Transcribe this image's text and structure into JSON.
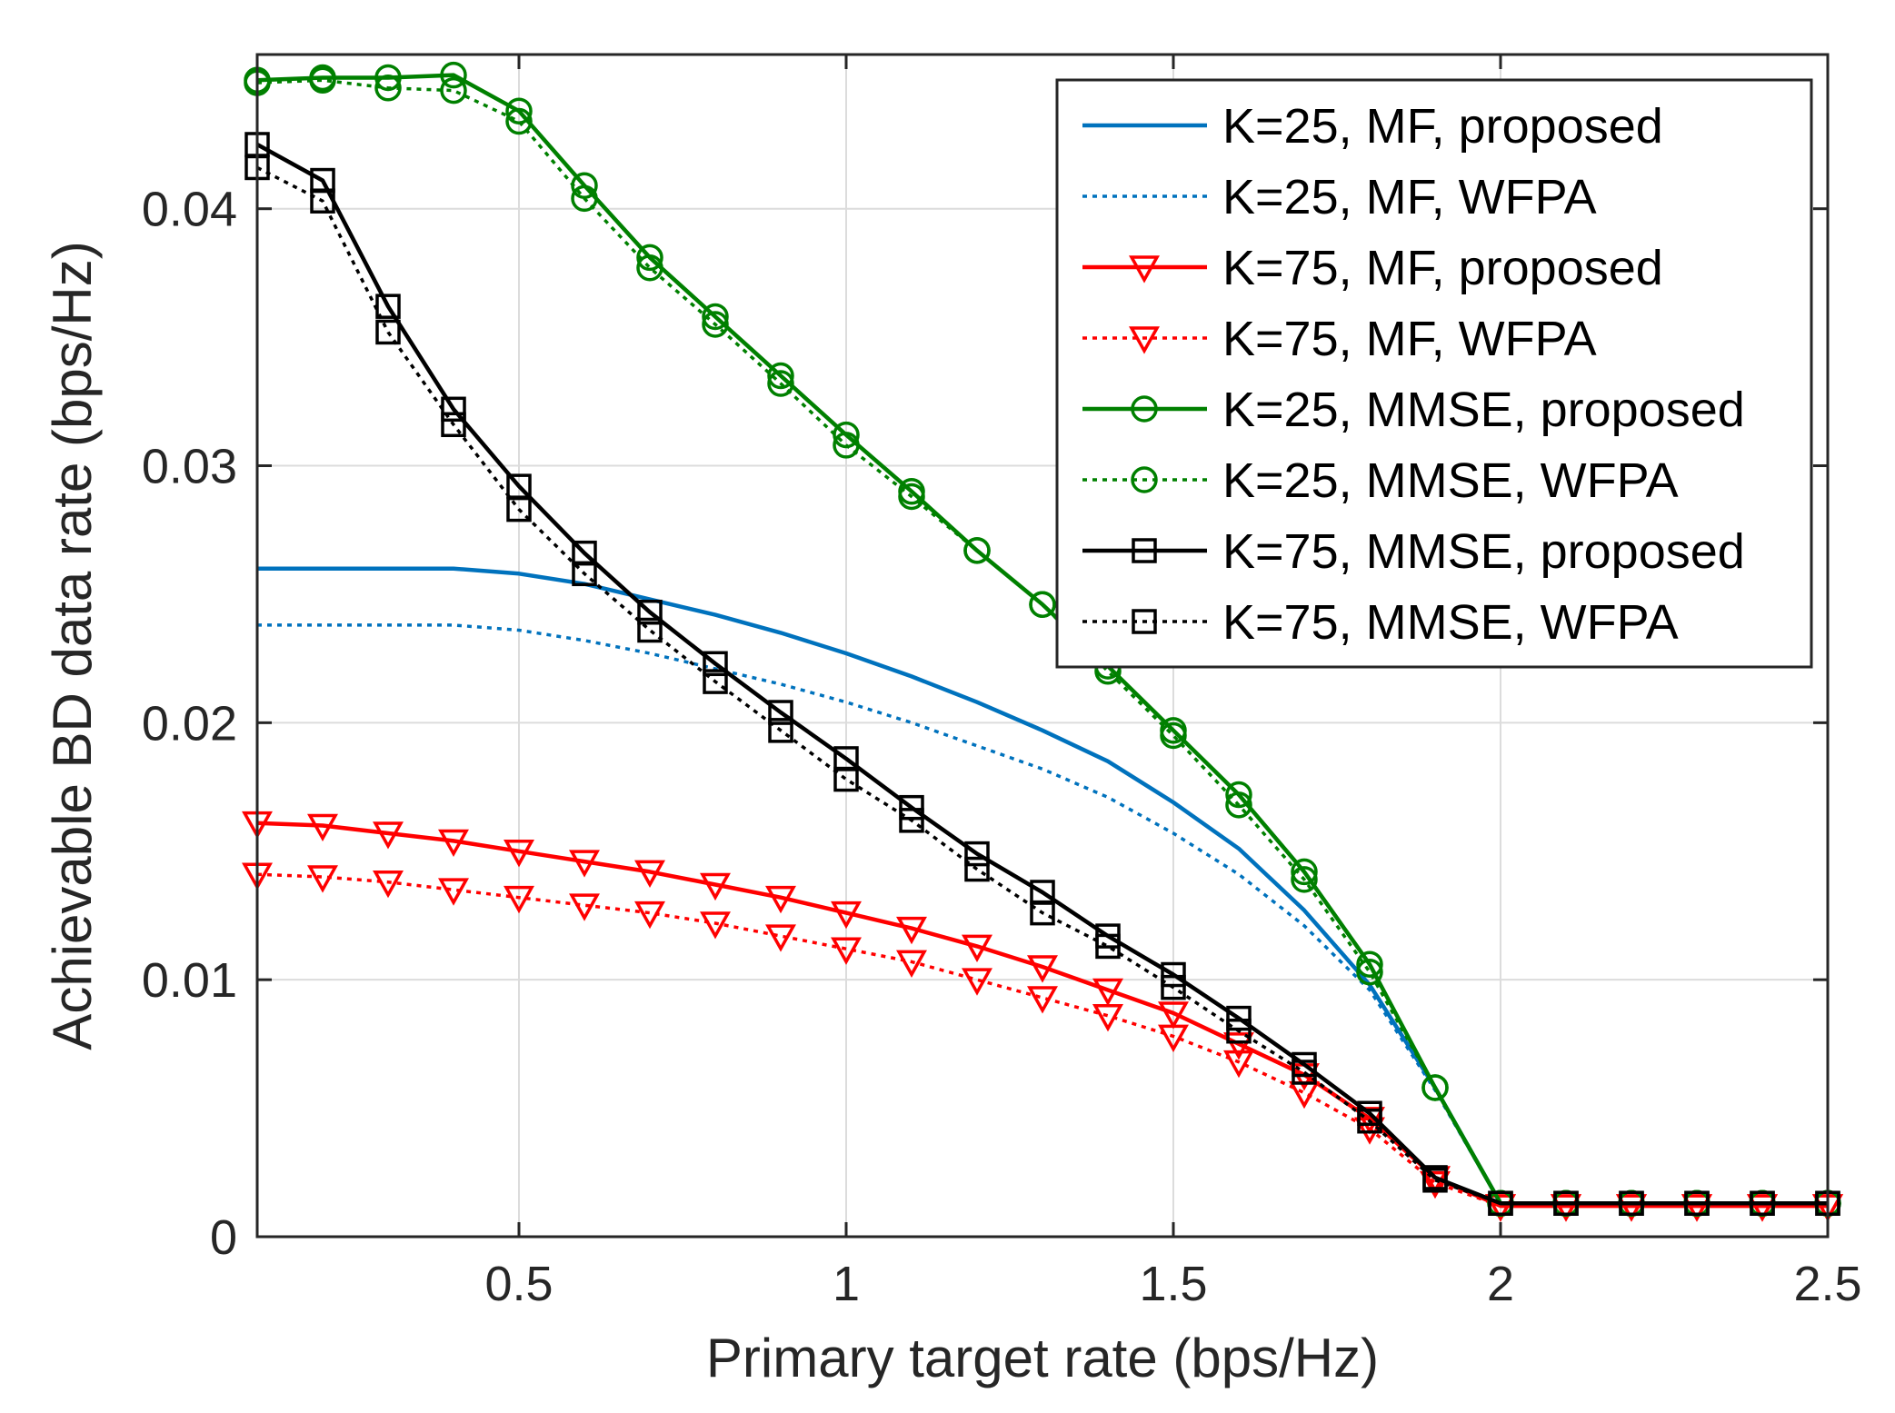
{
  "chart_data": {
    "type": "line",
    "title": "",
    "xlabel": "Primary target rate (bps/Hz)",
    "ylabel": "Achievable BD data rate (bps/Hz)",
    "xlim": [
      0.1,
      2.5
    ],
    "ylim": [
      0,
      0.046
    ],
    "grid": true,
    "legend_position": "top-right",
    "xticks": [
      0.5,
      1,
      1.5,
      2,
      2.5
    ],
    "xtick_labels": [
      "0.5",
      "1",
      "1.5",
      "2",
      "2.5"
    ],
    "yticks": [
      0,
      0.01,
      0.02,
      0.03,
      0.04
    ],
    "ytick_labels": [
      "0",
      "0.01",
      "0.02",
      "0.03",
      "0.04"
    ],
    "x": [
      0.1,
      0.2,
      0.3,
      0.4,
      0.5,
      0.6,
      0.7,
      0.8,
      0.9,
      1.0,
      1.1,
      1.2,
      1.3,
      1.4,
      1.5,
      1.6,
      1.7,
      1.8,
      1.9,
      2.0,
      2.1,
      2.2,
      2.3,
      2.4,
      2.5
    ],
    "series": [
      {
        "name": "K=25, MF, proposed",
        "color": "#0072BD",
        "line_style": "solid",
        "marker": "none",
        "values": [
          0.026,
          0.026,
          0.026,
          0.026,
          0.0258,
          0.0254,
          0.0248,
          0.0242,
          0.0235,
          0.0227,
          0.0218,
          0.0208,
          0.0197,
          0.0185,
          0.0169,
          0.0151,
          0.0127,
          0.0098,
          0.0058,
          0.0013,
          0.0013,
          0.0013,
          0.0013,
          0.0013,
          0.0013
        ]
      },
      {
        "name": "K=25, MF, WFPA",
        "color": "#0072BD",
        "line_style": "dotted",
        "marker": "none",
        "values": [
          0.0238,
          0.0238,
          0.0238,
          0.0238,
          0.0236,
          0.0232,
          0.0227,
          0.0221,
          0.0215,
          0.0208,
          0.02,
          0.0191,
          0.0182,
          0.0171,
          0.0157,
          0.0141,
          0.0121,
          0.0096,
          0.0057,
          0.0013,
          0.0013,
          0.0013,
          0.0013,
          0.0013,
          0.0013
        ]
      },
      {
        "name": "K=75, MF, proposed",
        "color": "#FF0000",
        "line_style": "solid",
        "marker": "triangle-down",
        "values": [
          0.0161,
          0.016,
          0.0157,
          0.0154,
          0.015,
          0.0146,
          0.0142,
          0.0137,
          0.0132,
          0.0126,
          0.012,
          0.0113,
          0.0105,
          0.0096,
          0.0087,
          0.0075,
          0.0063,
          0.0046,
          0.0023,
          0.0012,
          0.0012,
          0.0012,
          0.0012,
          0.0012,
          0.0012
        ]
      },
      {
        "name": "K=75, MF, WFPA",
        "color": "#FF0000",
        "line_style": "dotted",
        "marker": "triangle-down",
        "values": [
          0.0141,
          0.014,
          0.0138,
          0.0135,
          0.0132,
          0.0129,
          0.0126,
          0.0122,
          0.0117,
          0.0112,
          0.0107,
          0.01,
          0.0093,
          0.0086,
          0.0078,
          0.0068,
          0.0056,
          0.0042,
          0.0021,
          0.0012,
          0.0012,
          0.0012,
          0.0012,
          0.0012,
          0.0012
        ]
      },
      {
        "name": "K=25, MMSE, proposed",
        "color": "#008000",
        "line_style": "solid",
        "marker": "circle",
        "values": [
          0.045,
          0.0451,
          0.0451,
          0.0452,
          0.0438,
          0.0409,
          0.0381,
          0.0358,
          0.0335,
          0.0312,
          0.029,
          0.0267,
          0.0246,
          0.0222,
          0.0197,
          0.0172,
          0.0142,
          0.0106,
          0.0058,
          0.0013,
          0.0013,
          0.0013,
          0.0013,
          0.0013,
          0.0013
        ]
      },
      {
        "name": "K=25, MMSE, WFPA",
        "color": "#008000",
        "line_style": "dotted",
        "marker": "circle",
        "values": [
          0.0449,
          0.045,
          0.0447,
          0.0446,
          0.0434,
          0.0404,
          0.0377,
          0.0355,
          0.0332,
          0.0308,
          0.0288,
          0.0267,
          0.0246,
          0.022,
          0.0195,
          0.0168,
          0.0139,
          0.0103,
          0.0058,
          0.0013,
          0.0013,
          0.0013,
          0.0013,
          0.0013,
          0.0013
        ]
      },
      {
        "name": "K=75, MMSE, proposed",
        "color": "#000000",
        "line_style": "solid",
        "marker": "square",
        "values": [
          0.0425,
          0.0411,
          0.0362,
          0.0322,
          0.0292,
          0.0266,
          0.0243,
          0.0223,
          0.0204,
          0.0186,
          0.0167,
          0.0149,
          0.0134,
          0.0117,
          0.0102,
          0.0085,
          0.0067,
          0.0048,
          0.0023,
          0.0013,
          0.0013,
          0.0013,
          0.0013,
          0.0013,
          0.0013
        ]
      },
      {
        "name": "K=75, MMSE, WFPA",
        "color": "#000000",
        "line_style": "dotted",
        "marker": "square",
        "values": [
          0.0416,
          0.0403,
          0.0352,
          0.0316,
          0.0283,
          0.0258,
          0.0236,
          0.0216,
          0.0197,
          0.0178,
          0.0162,
          0.0143,
          0.0126,
          0.0113,
          0.0097,
          0.008,
          0.0064,
          0.0045,
          0.0022,
          0.0013,
          0.0013,
          0.0013,
          0.0013,
          0.0013,
          0.0013
        ]
      }
    ]
  }
}
